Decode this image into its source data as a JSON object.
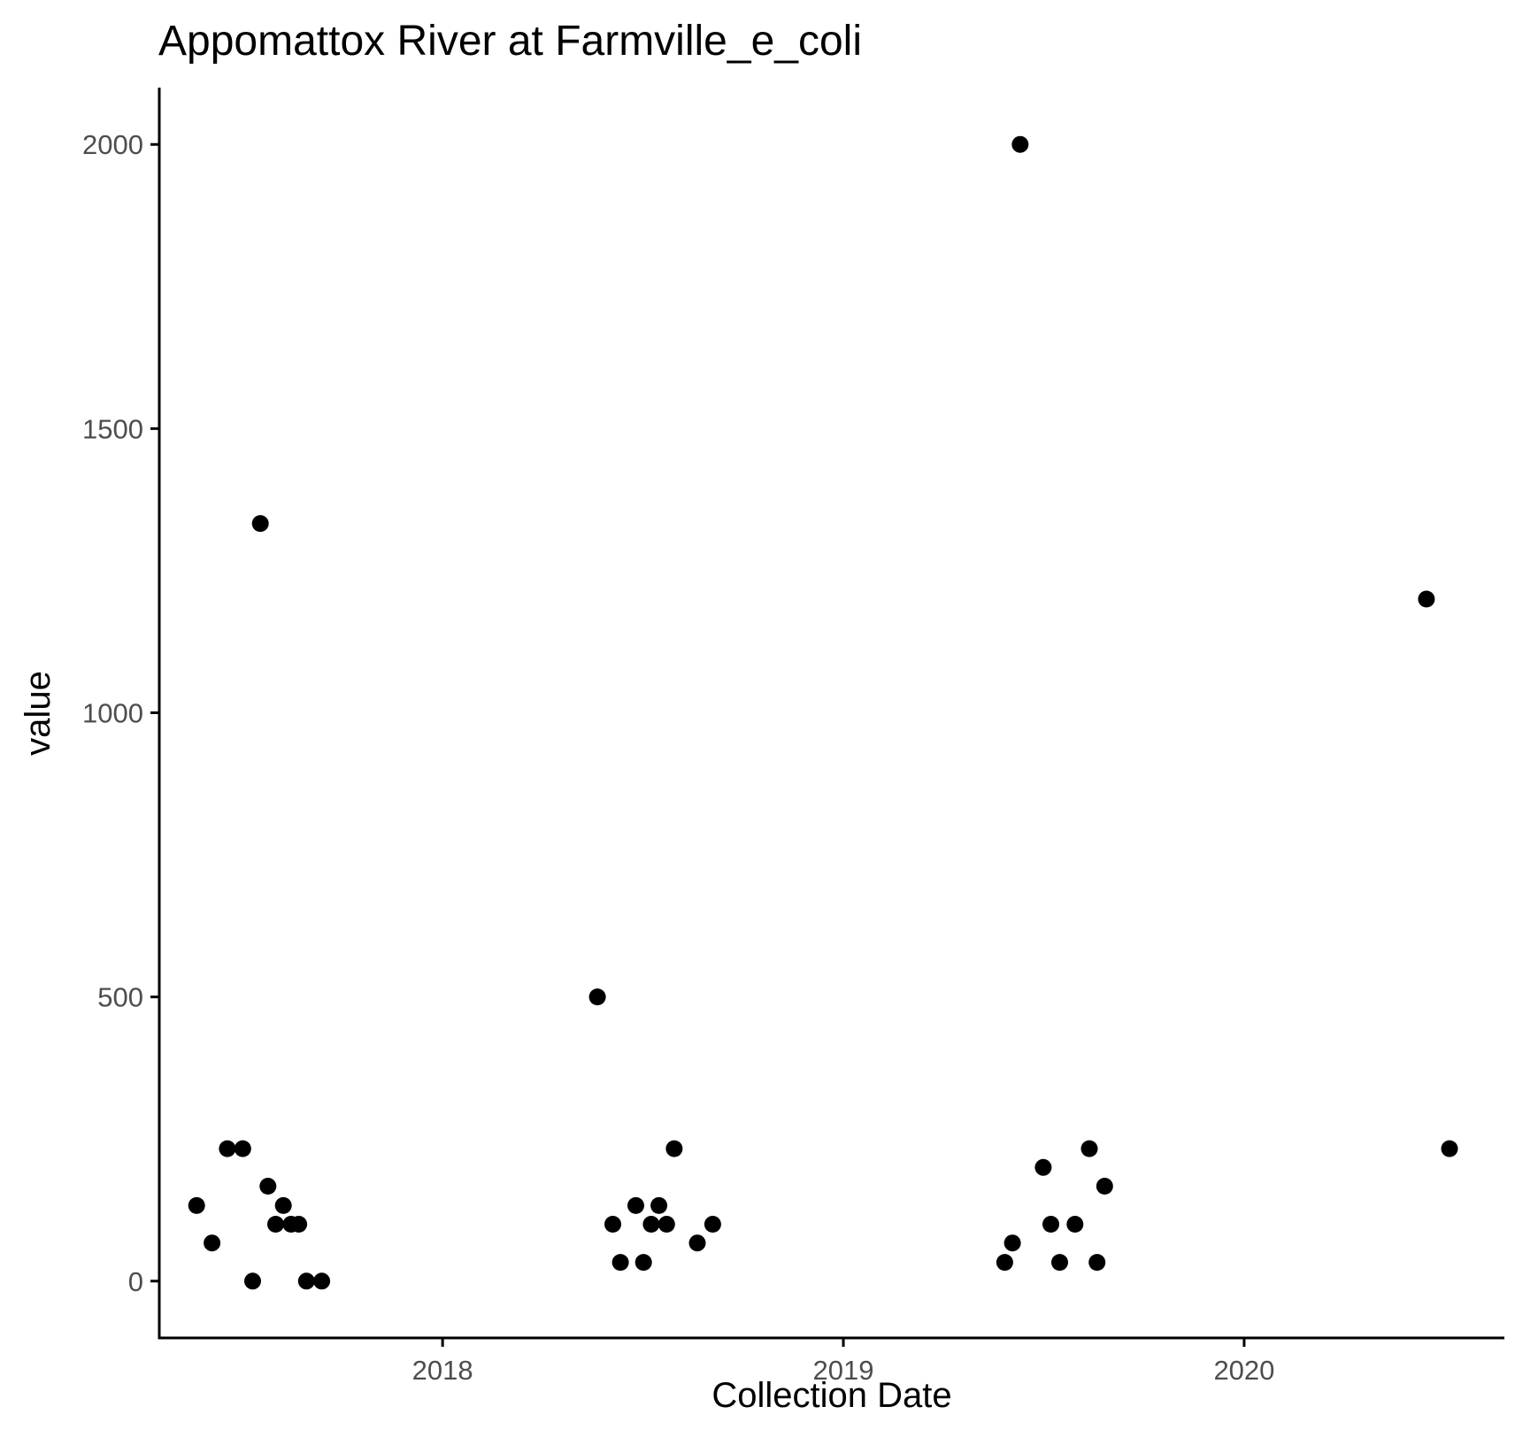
{
  "chart_data": {
    "type": "scatter",
    "title": "Appomattox River at Farmville_e_coli",
    "xlabel": "Collection Date",
    "ylabel": "value",
    "x_axis_type": "date",
    "xlim": [
      "2017-04-18",
      "2020-08-25"
    ],
    "ylim": [
      -100,
      2100
    ],
    "x_ticks": [
      {
        "date": "2018-01-01",
        "label": "2018"
      },
      {
        "date": "2019-01-01",
        "label": "2019"
      },
      {
        "date": "2020-01-01",
        "label": "2020"
      }
    ],
    "y_ticks": [
      0,
      500,
      1000,
      1500,
      2000
    ],
    "grid": false,
    "legend": "none",
    "color": "#000000",
    "series": [
      {
        "points": [
          {
            "x": "2017-05-22",
            "y": 133
          },
          {
            "x": "2017-06-05",
            "y": 67
          },
          {
            "x": "2017-06-19",
            "y": 233
          },
          {
            "x": "2017-07-03",
            "y": 233
          },
          {
            "x": "2017-07-12",
            "y": 0
          },
          {
            "x": "2017-07-19",
            "y": 1333
          },
          {
            "x": "2017-07-26",
            "y": 167
          },
          {
            "x": "2017-08-02",
            "y": 100
          },
          {
            "x": "2017-08-09",
            "y": 133
          },
          {
            "x": "2017-08-16",
            "y": 100
          },
          {
            "x": "2017-08-23",
            "y": 100
          },
          {
            "x": "2017-08-30",
            "y": 0
          },
          {
            "x": "2017-09-13",
            "y": 0
          },
          {
            "x": "2018-05-22",
            "y": 500
          },
          {
            "x": "2018-06-05",
            "y": 100
          },
          {
            "x": "2018-06-12",
            "y": 33
          },
          {
            "x": "2018-06-26",
            "y": 133
          },
          {
            "x": "2018-07-03",
            "y": 33
          },
          {
            "x": "2018-07-10",
            "y": 100
          },
          {
            "x": "2018-07-17",
            "y": 133
          },
          {
            "x": "2018-07-24",
            "y": 100
          },
          {
            "x": "2018-07-31",
            "y": 233
          },
          {
            "x": "2018-08-21",
            "y": 67
          },
          {
            "x": "2018-09-04",
            "y": 100
          },
          {
            "x": "2019-05-28",
            "y": 33
          },
          {
            "x": "2019-06-04",
            "y": 67
          },
          {
            "x": "2019-06-11",
            "y": 2000
          },
          {
            "x": "2019-07-02",
            "y": 200
          },
          {
            "x": "2019-07-09",
            "y": 100
          },
          {
            "x": "2019-07-17",
            "y": 33
          },
          {
            "x": "2019-07-31",
            "y": 100
          },
          {
            "x": "2019-08-13",
            "y": 233
          },
          {
            "x": "2019-08-20",
            "y": 33
          },
          {
            "x": "2019-08-27",
            "y": 167
          },
          {
            "x": "2020-06-15",
            "y": 1200
          },
          {
            "x": "2020-07-06",
            "y": 233
          }
        ]
      }
    ]
  }
}
